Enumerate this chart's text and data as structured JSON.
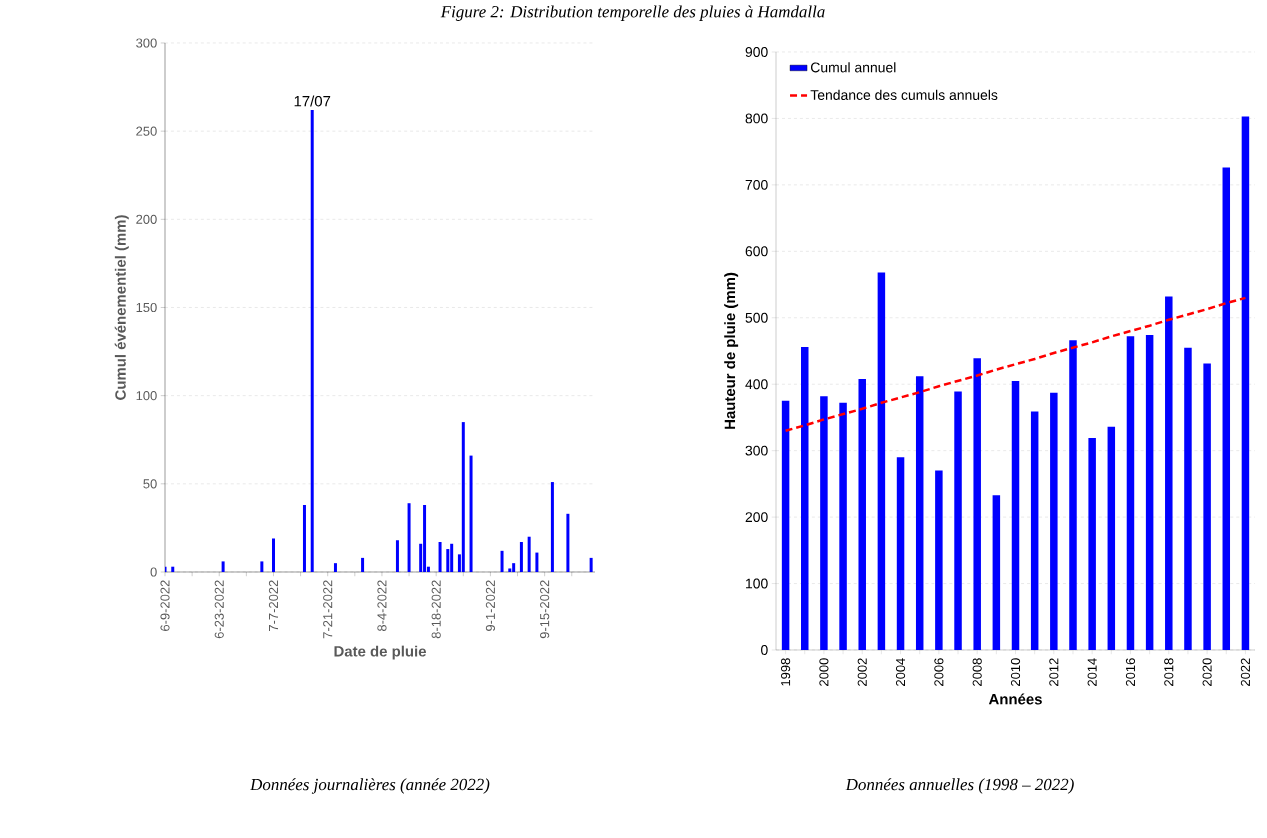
{
  "chart_data": [
    {
      "type": "bar",
      "title": "Figure 2: Distribution temporelle des pluies à Hamdalla",
      "xlabel": "Date de pluie",
      "ylabel": "Cumul événementiel (mm)",
      "color": "#0000ff",
      "x": [
        "2022-06-09",
        "2022-06-11",
        "2022-06-24",
        "2022-07-04",
        "2022-07-07",
        "2022-07-15",
        "2022-07-17",
        "2022-07-23",
        "2022-07-30",
        "2022-08-08",
        "2022-08-11",
        "2022-08-14",
        "2022-08-15",
        "2022-08-16",
        "2022-08-19",
        "2022-08-21",
        "2022-08-22",
        "2022-08-24",
        "2022-08-25",
        "2022-08-27",
        "2022-09-04",
        "2022-09-06",
        "2022-09-07",
        "2022-09-09",
        "2022-09-11",
        "2022-09-13",
        "2022-09-17",
        "2022-09-21",
        "2022-09-27"
      ],
      "values": [
        3,
        3,
        6,
        6,
        19,
        38,
        262,
        5,
        8,
        18,
        39,
        16,
        38,
        3,
        17,
        13,
        16,
        10,
        85,
        66,
        12,
        2,
        5,
        17,
        20,
        11,
        51,
        33,
        8
      ],
      "xlim": [
        "2022-06-09",
        "2022-09-28"
      ],
      "xticks": [
        {
          "value": "2022-06-09",
          "label": "6-9-2022"
        },
        {
          "value": "2022-06-16",
          "label": null
        },
        {
          "value": "2022-06-23",
          "label": "6-23-2022"
        },
        {
          "value": "2022-06-30",
          "label": null
        },
        {
          "value": "2022-07-07",
          "label": "7-7-2022"
        },
        {
          "value": "2022-07-14",
          "label": null
        },
        {
          "value": "2022-07-21",
          "label": "7-21-2022"
        },
        {
          "value": "2022-07-28",
          "label": null
        },
        {
          "value": "2022-08-04",
          "label": "8-4-2022"
        },
        {
          "value": "2022-08-11",
          "label": null
        },
        {
          "value": "2022-08-18",
          "label": "8-18-2022"
        },
        {
          "value": "2022-08-25",
          "label": null
        },
        {
          "value": "2022-09-01",
          "label": "9-1-2022"
        },
        {
          "value": "2022-09-08",
          "label": null
        },
        {
          "value": "2022-09-15",
          "label": "9-15-2022"
        },
        {
          "value": "2022-09-22",
          "label": null
        }
      ],
      "ylim": [
        0,
        300
      ],
      "yticks": [
        0,
        50,
        100,
        150,
        200,
        250,
        300
      ],
      "grid": "y",
      "annotations": [
        {
          "text": "17/07",
          "x": "2022-07-17",
          "y": 262
        },
        "Données journalières (année 2022)"
      ]
    },
    {
      "type": "bar",
      "xlabel": "Années",
      "ylabel": "Hauteur de pluie (mm)",
      "categories": [
        "1998",
        null,
        "2000",
        null,
        "2002",
        null,
        "2004",
        null,
        "2006",
        null,
        "2008",
        null,
        "2010",
        null,
        "2012",
        null,
        "2014",
        null,
        "2016",
        null,
        "2018",
        null,
        "2020",
        null,
        "2022"
      ],
      "series": [
        {
          "name": "Cumul annuel",
          "color": "#0000ff",
          "values": [
            375,
            456,
            382,
            372,
            408,
            568,
            290,
            412,
            270,
            389,
            439,
            233,
            405,
            359,
            387,
            466,
            319,
            336,
            472,
            474,
            532,
            455,
            431,
            726,
            803
          ]
        },
        {
          "name": "Tendance des cumuls annuels",
          "type": "line",
          "line_style": "dashed",
          "color": "#ff0000",
          "values": [
            330,
            338,
            347,
            355,
            363,
            372,
            380,
            388,
            397,
            405,
            413,
            422,
            430,
            438,
            447,
            455,
            463,
            472,
            480,
            488,
            497,
            505,
            513,
            522,
            530
          ]
        }
      ],
      "ylim": [
        0,
        900
      ],
      "yticks": [
        0,
        100,
        200,
        300,
        400,
        500,
        600,
        700,
        800,
        900
      ],
      "grid": "y",
      "legend": "top left",
      "annotations": [
        "Données annuelles (1998 – 2022)"
      ]
    }
  ]
}
